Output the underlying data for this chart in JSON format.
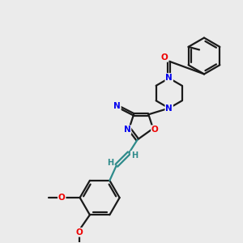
{
  "bg_color": "#ebebeb",
  "bond_color": "#1a1a1a",
  "N_color": "#0000ee",
  "O_color": "#ee0000",
  "teal_color": "#2e8b8b",
  "line_width": 1.6,
  "font_size_atom": 8.5,
  "font_size_small": 7.0,
  "xlim": [
    0,
    10
  ],
  "ylim": [
    0,
    10
  ]
}
